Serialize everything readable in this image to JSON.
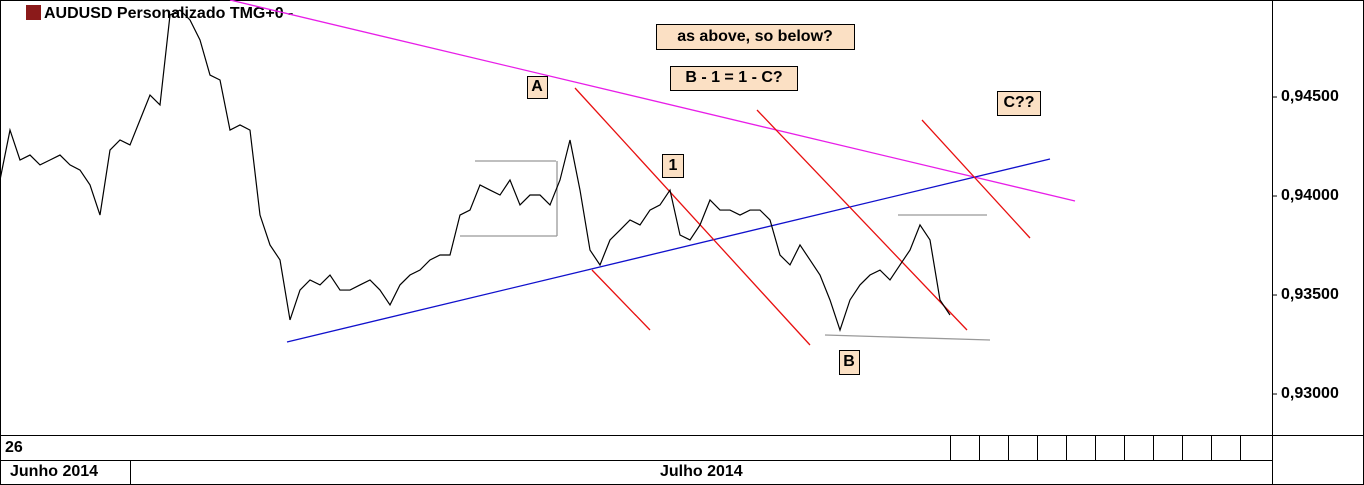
{
  "chart_data": {
    "type": "line",
    "title": "AUDUSD Personalizado TMG+0 -",
    "corner_label": "26",
    "color": "#000000",
    "grid": false,
    "categories": [
      "Junho 2014",
      null,
      null,
      null,
      null,
      null,
      null,
      null,
      null,
      null,
      null,
      null,
      null,
      null,
      null,
      null,
      null,
      null,
      null,
      null,
      null,
      null,
      null,
      null,
      null,
      null,
      null,
      null,
      null,
      null,
      null,
      null,
      null,
      null,
      null,
      null,
      null,
      null,
      null,
      null,
      null,
      null,
      null,
      null,
      null,
      null,
      null,
      null,
      null,
      null,
      null,
      null,
      null,
      null,
      null,
      null,
      null,
      null,
      null,
      null,
      null,
      null,
      null,
      null,
      null,
      "Julho 2014",
      null,
      null,
      null,
      null,
      null,
      null,
      null,
      null,
      null,
      null,
      null,
      null,
      null,
      null,
      null,
      null,
      null,
      null,
      null,
      null,
      null,
      null,
      null,
      null,
      null,
      null,
      null,
      null,
      null,
      null
    ],
    "values": [
      0.94081,
      0.94333,
      0.94182,
      0.94207,
      0.94157,
      0.94182,
      0.94207,
      0.94157,
      0.94131,
      0.94056,
      0.93904,
      0.94232,
      0.94283,
      0.94258,
      0.94384,
      0.9451,
      0.9446,
      0.94914,
      0.94939,
      0.94889,
      0.94788,
      0.94611,
      0.94586,
      0.94333,
      0.94359,
      0.94333,
      0.93904,
      0.93753,
      0.93677,
      0.93374,
      0.93525,
      0.93576,
      0.93551,
      0.93601,
      0.93525,
      0.93525,
      0.93551,
      0.93576,
      0.93525,
      0.9345,
      0.93551,
      0.93601,
      0.93626,
      0.93677,
      0.93702,
      0.93702,
      0.93904,
      0.93929,
      0.94056,
      0.9403,
      0.94005,
      0.94081,
      0.93955,
      0.94005,
      0.94005,
      0.93955,
      0.94081,
      0.94283,
      0.9403,
      0.93727,
      0.93652,
      0.93778,
      0.93828,
      0.93879,
      0.93854,
      0.93929,
      0.93955,
      0.9403,
      0.93803,
      0.93778,
      0.93854,
      0.9398,
      0.93929,
      0.93929,
      0.93904,
      0.93929,
      0.93929,
      0.93879,
      0.93702,
      0.93652,
      0.93753,
      0.93677,
      0.93601,
      0.93475,
      0.93323,
      0.93475,
      0.93551,
      0.93601,
      0.93626,
      0.93576,
      0.93652,
      0.93727,
      0.93854,
      0.93778,
      0.93475,
      0.93399
    ],
    "ylim": [
      0.92793,
      0.9499
    ],
    "yticks": [
      {
        "value": 0.93,
        "label": "0,93000"
      },
      {
        "value": 0.935,
        "label": "0,93500"
      },
      {
        "value": 0.94,
        "label": "0,94000"
      },
      {
        "value": 0.945,
        "label": "0,94500"
      }
    ],
    "annotations": [
      "as above, so below?",
      "B - 1 = 1 - C?",
      "C??",
      "A",
      "1",
      "B"
    ]
  }
}
